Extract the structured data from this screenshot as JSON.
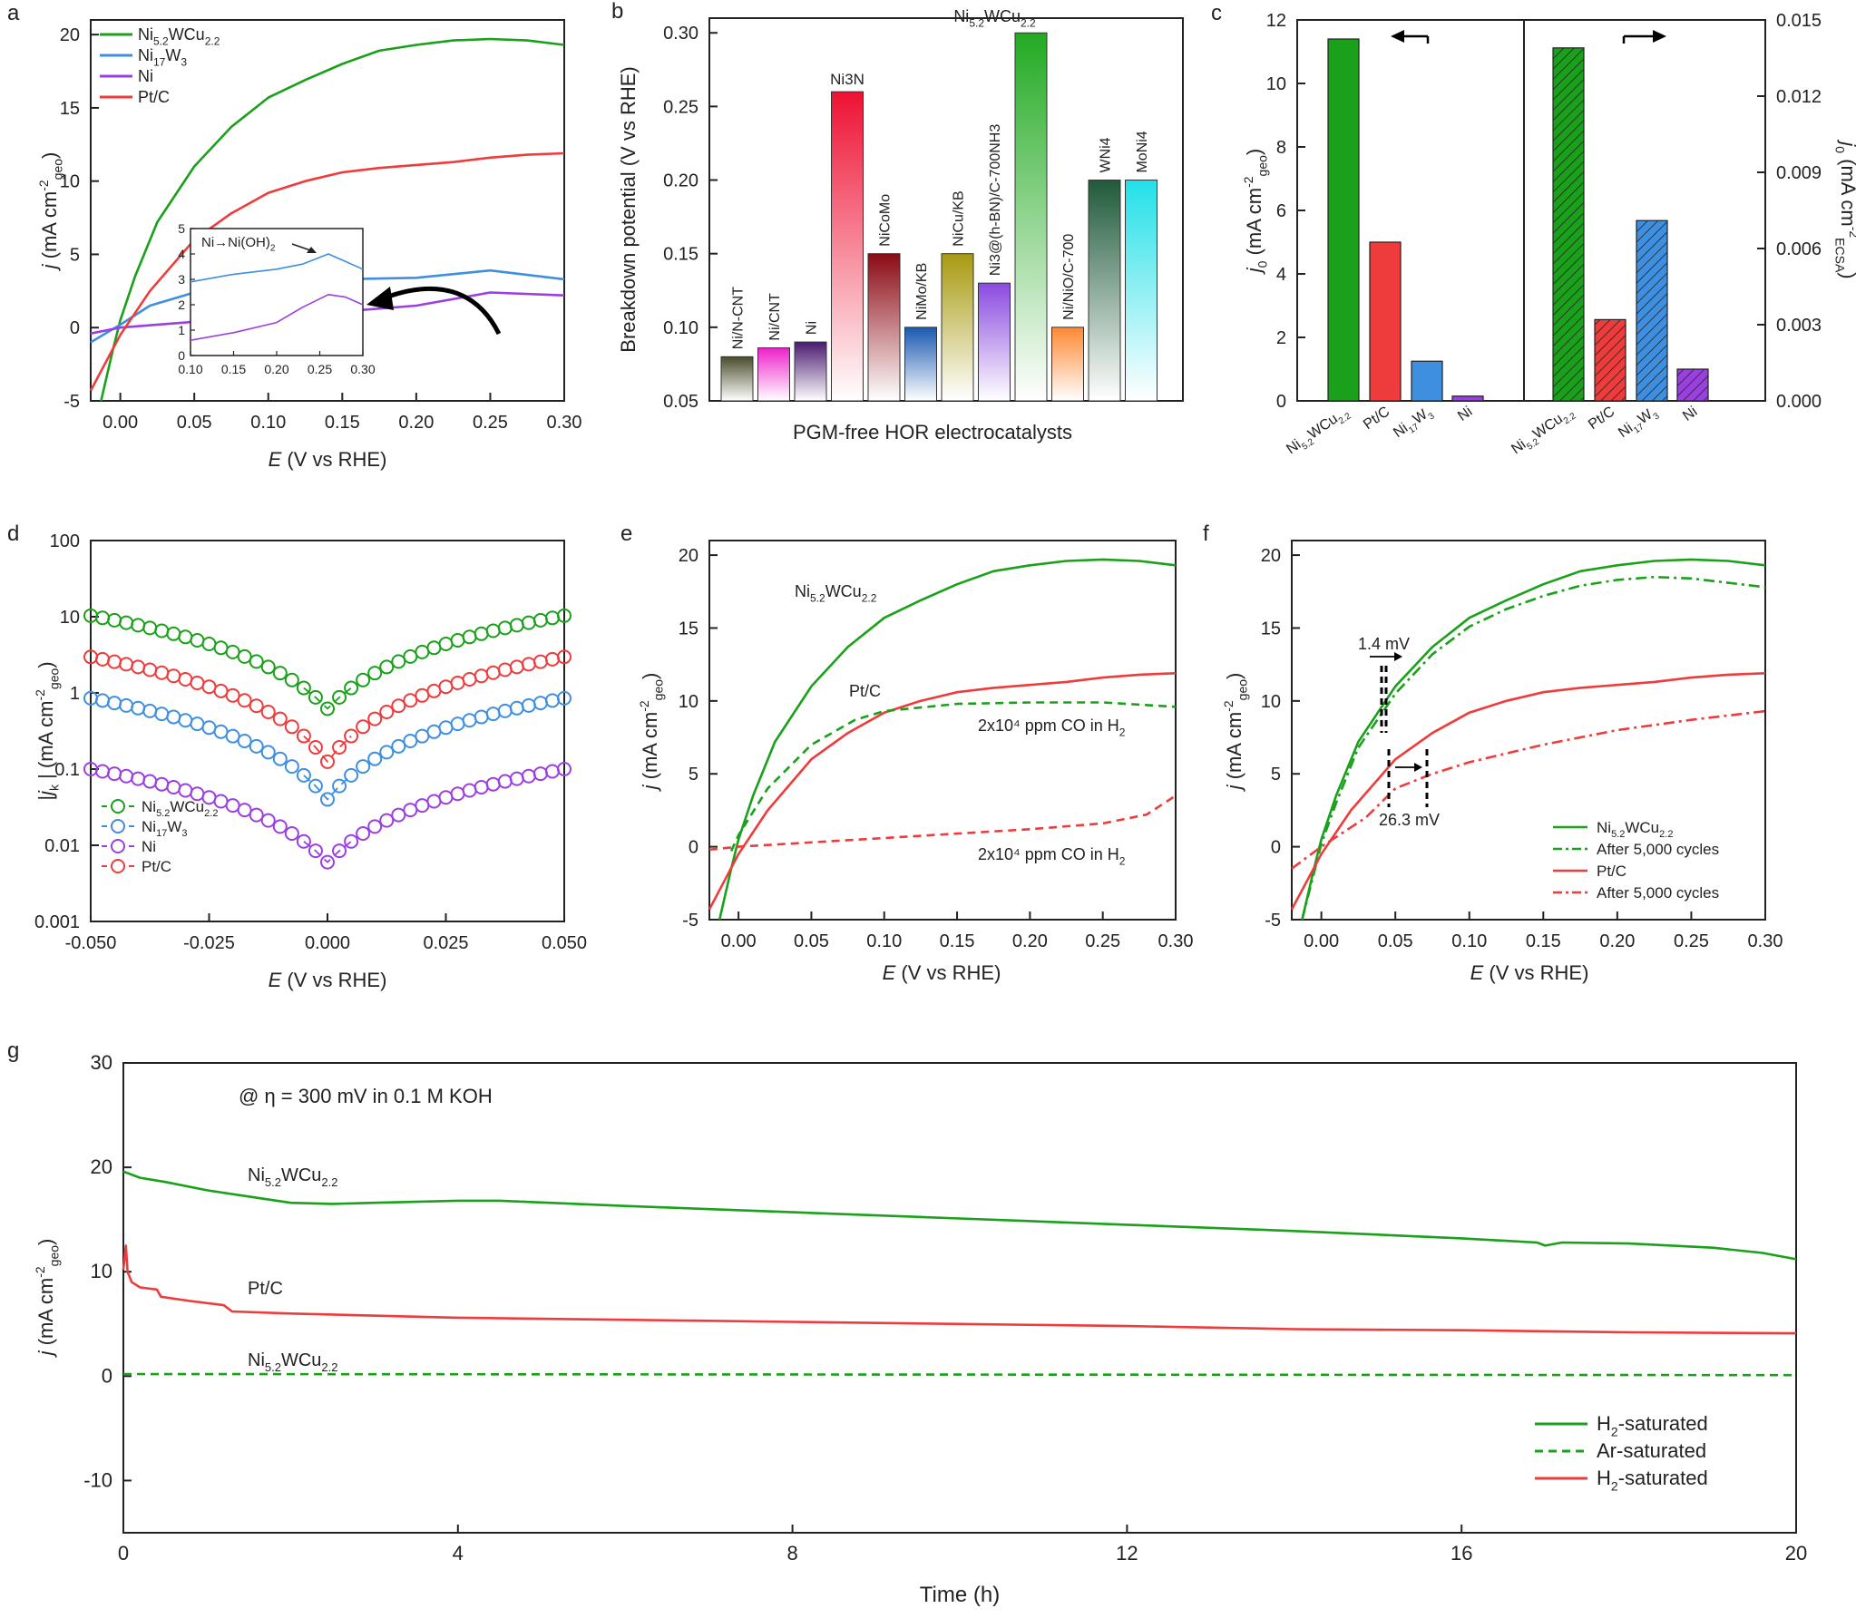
{
  "colors": {
    "green": "#1aa01a",
    "blue": "#3f8fe0",
    "purple": "#9b3fe0",
    "red": "#ee3b3b",
    "axis": "#222222"
  },
  "chart_data": [
    {
      "id": "a",
      "panel_label": "a",
      "type": "line",
      "xlabel": "E (V vs RHE)",
      "ylabel": "j (mA cm-2geo)",
      "xlim": [
        -0.02,
        0.3
      ],
      "ylim": [
        -5,
        21
      ],
      "xticks": [
        "0.00",
        "0.05",
        "0.10",
        "0.15",
        "0.20",
        "0.25",
        "0.30"
      ],
      "yticks": [
        "-5",
        "0",
        "5",
        "10",
        "15",
        "20"
      ],
      "series": [
        {
          "name": "Ni5.2WCu2.2",
          "color": "green",
          "dash": "solid",
          "x": [
            -0.013,
            -0.005,
            0.0,
            0.01,
            0.025,
            0.05,
            0.075,
            0.1,
            0.125,
            0.15,
            0.175,
            0.2,
            0.225,
            0.25,
            0.275,
            0.3
          ],
          "y": [
            -5.0,
            -1.5,
            0.5,
            3.5,
            7.2,
            11.0,
            13.7,
            15.7,
            16.9,
            18.0,
            18.9,
            19.3,
            19.6,
            19.7,
            19.6,
            19.3
          ]
        },
        {
          "name": "Ni17W3",
          "color": "blue",
          "dash": "solid",
          "x": [
            -0.02,
            0.0,
            0.02,
            0.05,
            0.08,
            0.1,
            0.15,
            0.2,
            0.25,
            0.3
          ],
          "y": [
            -1.0,
            0.2,
            1.5,
            2.4,
            2.9,
            3.1,
            3.3,
            3.4,
            3.9,
            3.3
          ]
        },
        {
          "name": "Ni",
          "color": "purple",
          "dash": "solid",
          "x": [
            -0.02,
            0.0,
            0.05,
            0.1,
            0.15,
            0.2,
            0.25,
            0.3
          ],
          "y": [
            -0.4,
            0.0,
            0.4,
            0.8,
            1.1,
            1.5,
            2.4,
            2.2
          ]
        },
        {
          "name": "Pt/C",
          "color": "red",
          "dash": "solid",
          "x": [
            -0.02,
            0.0,
            0.02,
            0.05,
            0.075,
            0.1,
            0.125,
            0.15,
            0.175,
            0.2,
            0.225,
            0.25,
            0.275,
            0.3
          ],
          "y": [
            -4.3,
            -0.5,
            2.5,
            6.0,
            7.8,
            9.2,
            10.0,
            10.6,
            10.9,
            11.1,
            11.3,
            11.6,
            11.8,
            11.9
          ]
        }
      ],
      "legend": [
        "Ni5.2WCu2.2",
        "Ni17W3",
        "Ni",
        "Pt/C"
      ],
      "inset": {
        "label": "Ni→Ni(OH)2",
        "xlim": [
          0.1,
          0.3
        ],
        "ylim": [
          0,
          5
        ],
        "xticks": [
          "0.10",
          "0.15",
          "0.20",
          "0.25",
          "0.30"
        ],
        "yticks": [
          "0",
          "1",
          "2",
          "3",
          "4",
          "5"
        ],
        "series": [
          {
            "name": "Ni17W3",
            "color": "blue",
            "x": [
              0.1,
              0.15,
              0.2,
              0.23,
              0.26,
              0.28,
              0.3
            ],
            "y": [
              2.9,
              3.2,
              3.4,
              3.6,
              4.0,
              3.7,
              3.4
            ]
          },
          {
            "name": "Ni",
            "color": "purple",
            "x": [
              0.1,
              0.15,
              0.2,
              0.23,
              0.26,
              0.28,
              0.3
            ],
            "y": [
              0.6,
              0.9,
              1.3,
              1.9,
              2.4,
              2.3,
              2.0
            ]
          }
        ]
      }
    },
    {
      "id": "b",
      "panel_label": "b",
      "type": "bar",
      "xlabel": "PGM-free HOR electrocatalysts",
      "ylabel": "Breakdown potential (V vs RHE)",
      "ylim": [
        0.05,
        0.31
      ],
      "yticks": [
        "0.05",
        "0.10",
        "0.15",
        "0.20",
        "0.25",
        "0.30"
      ],
      "categories": [
        "Ni/N-CNT",
        "Ni/CNT",
        "Ni",
        "Ni3N",
        "NiCoMo",
        "NiMo/KB",
        "NiCu/KB",
        "Ni3@(h-BN)/C-700NH3",
        "Ni5.2WCu2.2",
        "Ni/NiO/C-700",
        "WNi4",
        "MoNi4"
      ],
      "values": [
        0.08,
        0.086,
        0.09,
        0.26,
        0.15,
        0.1,
        0.15,
        0.13,
        0.3,
        0.1,
        0.2,
        0.2
      ],
      "bar_colors": [
        "#4b4d2b",
        "#ee22cc",
        "#4a1a70",
        "#ee1133",
        "#8b0a14",
        "#1a58b0",
        "#a89a10",
        "#8a4ae0",
        "#22aa22",
        "#ff8833",
        "#1f5a3a",
        "#22e0e8"
      ]
    },
    {
      "id": "c",
      "panel_label": "c",
      "type": "bar",
      "ylabel_left": "j0 (mA cm-2geo)",
      "ylabel_right": "j0 (mA cm-2ECSA)",
      "ylim_left": [
        0,
        12
      ],
      "ylim_right": [
        0,
        0.015
      ],
      "yticks_left": [
        "0",
        "2",
        "4",
        "6",
        "8",
        "10",
        "12"
      ],
      "yticks_right": [
        "0.000",
        "0.003",
        "0.006",
        "0.009",
        "0.012",
        "0.015"
      ],
      "categories": [
        "Ni5.2WCu2.2",
        "Pt/C",
        "Ni17W3",
        "Ni"
      ],
      "series": [
        {
          "name": "j0 geo",
          "axis": "left",
          "values": [
            11.4,
            5.0,
            1.25,
            0.15
          ]
        },
        {
          "name": "j0 ECSA",
          "axis": "right",
          "hatched": true,
          "values": [
            0.0139,
            0.0032,
            0.0071,
            0.00125
          ]
        }
      ]
    },
    {
      "id": "d",
      "panel_label": "d",
      "type": "scatter",
      "yscale": "log",
      "xlabel": "E (V vs RHE)",
      "ylabel": "|jk| (mA cm-2geo)",
      "xlim": [
        -0.05,
        0.05
      ],
      "ylim": [
        0.001,
        100
      ],
      "xticks": [
        "-0.050",
        "-0.025",
        "0.000",
        "0.025",
        "0.050"
      ],
      "yticks": [
        "0.001",
        "0.01",
        "0.1",
        "1",
        "10",
        "100"
      ],
      "series": [
        {
          "name": "Ni5.2WCu2.2",
          "color": "green",
          "i0": 0.62,
          "a": 30
        },
        {
          "name": "Ni17W3",
          "color": "blue",
          "i0": 0.04,
          "a": 36
        },
        {
          "name": "Ni",
          "color": "purple",
          "i0": 0.006,
          "a": 30
        },
        {
          "name": "Pt/C",
          "color": "red",
          "i0": 0.125,
          "a": 39
        }
      ],
      "legend": [
        "Ni5.2WCu2.2",
        "Ni17W3",
        "Ni",
        "Pt/C"
      ]
    },
    {
      "id": "e",
      "panel_label": "e",
      "type": "line",
      "xlabel": "E (V vs RHE)",
      "ylabel": "j (mA cm-2geo)",
      "xlim": [
        -0.02,
        0.3
      ],
      "ylim": [
        -5,
        21
      ],
      "xticks": [
        "0.00",
        "0.05",
        "0.10",
        "0.15",
        "0.20",
        "0.25",
        "0.30"
      ],
      "yticks": [
        "-5",
        "0",
        "5",
        "10",
        "15",
        "20"
      ],
      "series": [
        {
          "name": "Ni5.2WCu2.2",
          "color": "green",
          "dash": "solid",
          "x": [
            -0.013,
            -0.005,
            0.0,
            0.01,
            0.025,
            0.05,
            0.075,
            0.1,
            0.125,
            0.15,
            0.175,
            0.2,
            0.225,
            0.25,
            0.275,
            0.3
          ],
          "y": [
            -5.0,
            -1.5,
            0.5,
            3.5,
            7.2,
            11.0,
            13.7,
            15.7,
            16.9,
            18.0,
            18.9,
            19.3,
            19.6,
            19.7,
            19.6,
            19.3
          ]
        },
        {
          "name": "Pt/C",
          "color": "red",
          "dash": "solid",
          "x": [
            -0.02,
            0.0,
            0.02,
            0.05,
            0.075,
            0.1,
            0.125,
            0.15,
            0.175,
            0.2,
            0.225,
            0.25,
            0.275,
            0.3
          ],
          "y": [
            -4.3,
            -0.5,
            2.5,
            6.0,
            7.8,
            9.2,
            10.0,
            10.6,
            10.9,
            11.1,
            11.3,
            11.6,
            11.8,
            11.9
          ]
        },
        {
          "name": "Ni5.2WCu2.2 CO",
          "color": "green",
          "dash": "dash",
          "x": [
            -0.005,
            0.0,
            0.02,
            0.05,
            0.08,
            0.1,
            0.15,
            0.2,
            0.25,
            0.3
          ],
          "y": [
            -0.3,
            0.8,
            4.0,
            7.0,
            8.7,
            9.3,
            9.8,
            9.9,
            9.9,
            9.6
          ]
        },
        {
          "name": "Pt/C CO",
          "color": "red",
          "dash": "dash",
          "x": [
            -0.02,
            0.0,
            0.05,
            0.1,
            0.15,
            0.2,
            0.25,
            0.28,
            0.3
          ],
          "y": [
            -0.2,
            0.0,
            0.3,
            0.6,
            0.9,
            1.2,
            1.6,
            2.2,
            3.5
          ]
        }
      ],
      "annotations": {
        "ni": "Ni5.2WCu2.2",
        "pt": "Pt/C",
        "co_ni": "2x10⁴ ppm CO in H2",
        "co_pt": "2x10⁴ ppm CO in H2"
      }
    },
    {
      "id": "f",
      "panel_label": "f",
      "type": "line",
      "xlabel": "E (V vs RHE)",
      "ylabel": "j (mA cm-2geo)",
      "xlim": [
        -0.02,
        0.3
      ],
      "ylim": [
        -5,
        21
      ],
      "xticks": [
        "0.00",
        "0.05",
        "0.10",
        "0.15",
        "0.20",
        "0.25",
        "0.30"
      ],
      "yticks": [
        "-5",
        "0",
        "5",
        "10",
        "15",
        "20"
      ],
      "series": [
        {
          "name": "Ni5.2WCu2.2",
          "color": "green",
          "dash": "solid",
          "x": [
            -0.013,
            -0.005,
            0.0,
            0.01,
            0.025,
            0.05,
            0.075,
            0.1,
            0.125,
            0.15,
            0.175,
            0.2,
            0.225,
            0.25,
            0.275,
            0.3
          ],
          "y": [
            -5.0,
            -1.5,
            0.5,
            3.5,
            7.2,
            11.0,
            13.7,
            15.7,
            16.9,
            18.0,
            18.9,
            19.3,
            19.6,
            19.7,
            19.6,
            19.3
          ]
        },
        {
          "name": "After 5,000 cycles (Ni5.2WCu2.2)",
          "color": "green",
          "dash": "dashdot",
          "x": [
            -0.013,
            -0.005,
            0.0,
            0.01,
            0.025,
            0.05,
            0.075,
            0.1,
            0.125,
            0.15,
            0.175,
            0.2,
            0.225,
            0.25,
            0.275,
            0.3
          ],
          "y": [
            -5.0,
            -1.8,
            0.2,
            3.0,
            6.8,
            10.5,
            13.2,
            15.1,
            16.3,
            17.2,
            17.9,
            18.3,
            18.5,
            18.4,
            18.1,
            17.8
          ]
        },
        {
          "name": "Pt/C",
          "color": "red",
          "dash": "solid",
          "x": [
            -0.02,
            0.0,
            0.02,
            0.05,
            0.075,
            0.1,
            0.125,
            0.15,
            0.175,
            0.2,
            0.225,
            0.25,
            0.275,
            0.3
          ],
          "y": [
            -4.3,
            -0.5,
            2.5,
            6.0,
            7.8,
            9.2,
            10.0,
            10.6,
            10.9,
            11.1,
            11.3,
            11.6,
            11.8,
            11.9
          ]
        },
        {
          "name": "After 5,000 cycles (Pt/C)",
          "color": "red",
          "dash": "dashdot",
          "x": [
            -0.02,
            0.0,
            0.03,
            0.05,
            0.075,
            0.1,
            0.15,
            0.2,
            0.25,
            0.3
          ],
          "y": [
            -1.5,
            0.0,
            2.0,
            4.0,
            5.0,
            5.8,
            7.0,
            8.0,
            8.7,
            9.3
          ]
        }
      ],
      "legend": [
        "Ni5.2WCu2.2",
        "After 5,000 cycles",
        "Pt/C",
        "After 5,000 cycles"
      ],
      "annotations": {
        "shift_ni": "1.4 mV",
        "shift_pt": "26.3 mV"
      }
    },
    {
      "id": "g",
      "panel_label": "g",
      "type": "line",
      "title": "@ η = 300 mV in 0.1 M KOH",
      "xlabel": "Time (h)",
      "ylabel": "j (mA cm-2geo)",
      "xlim": [
        0,
        20
      ],
      "ylim": [
        -15,
        30
      ],
      "xticks": [
        "0",
        "4",
        "8",
        "12",
        "16",
        "20"
      ],
      "yticks": [
        "-10",
        "0",
        "10",
        "20",
        "30"
      ],
      "series": [
        {
          "name": "H2-saturated (Ni5.2WCu2.2)",
          "color": "green",
          "dash": "solid",
          "x": [
            0,
            0.2,
            0.5,
            1.0,
            1.5,
            2.0,
            2.5,
            3.0,
            4.0,
            4.5,
            6,
            8,
            10,
            12,
            14,
            16,
            16.9,
            17.0,
            17.2,
            18,
            19,
            19.6,
            20
          ],
          "y": [
            19.6,
            19.0,
            18.6,
            17.8,
            17.2,
            16.6,
            16.5,
            16.6,
            16.8,
            16.8,
            16.3,
            15.7,
            15.1,
            14.5,
            13.9,
            13.2,
            12.8,
            12.5,
            12.8,
            12.7,
            12.3,
            11.8,
            11.2
          ]
        },
        {
          "name": "Ar-saturated (Ni5.2WCu2.2)",
          "color": "green",
          "dash": "dash",
          "x": [
            0,
            20
          ],
          "y": [
            0.2,
            0.1
          ]
        },
        {
          "name": "H2-saturated (Pt/C)",
          "color": "red",
          "dash": "solid",
          "x": [
            0,
            0.03,
            0.05,
            0.1,
            0.2,
            0.4,
            0.45,
            0.8,
            1.2,
            1.3,
            2,
            4,
            6,
            8,
            10,
            12,
            14,
            16,
            18,
            20
          ],
          "y": [
            10.2,
            12.5,
            10.0,
            9.0,
            8.5,
            8.3,
            7.6,
            7.2,
            6.8,
            6.2,
            6.0,
            5.6,
            5.4,
            5.2,
            5.0,
            4.8,
            4.5,
            4.4,
            4.2,
            4.1
          ]
        }
      ],
      "annotations": {
        "ni": "Ni5.2WCu2.2",
        "pt": "Pt/C",
        "ni_ar": "Ni5.2WCu2.2"
      },
      "legend": [
        "H2-saturated",
        "Ar-saturated",
        "H2-saturated"
      ]
    }
  ]
}
